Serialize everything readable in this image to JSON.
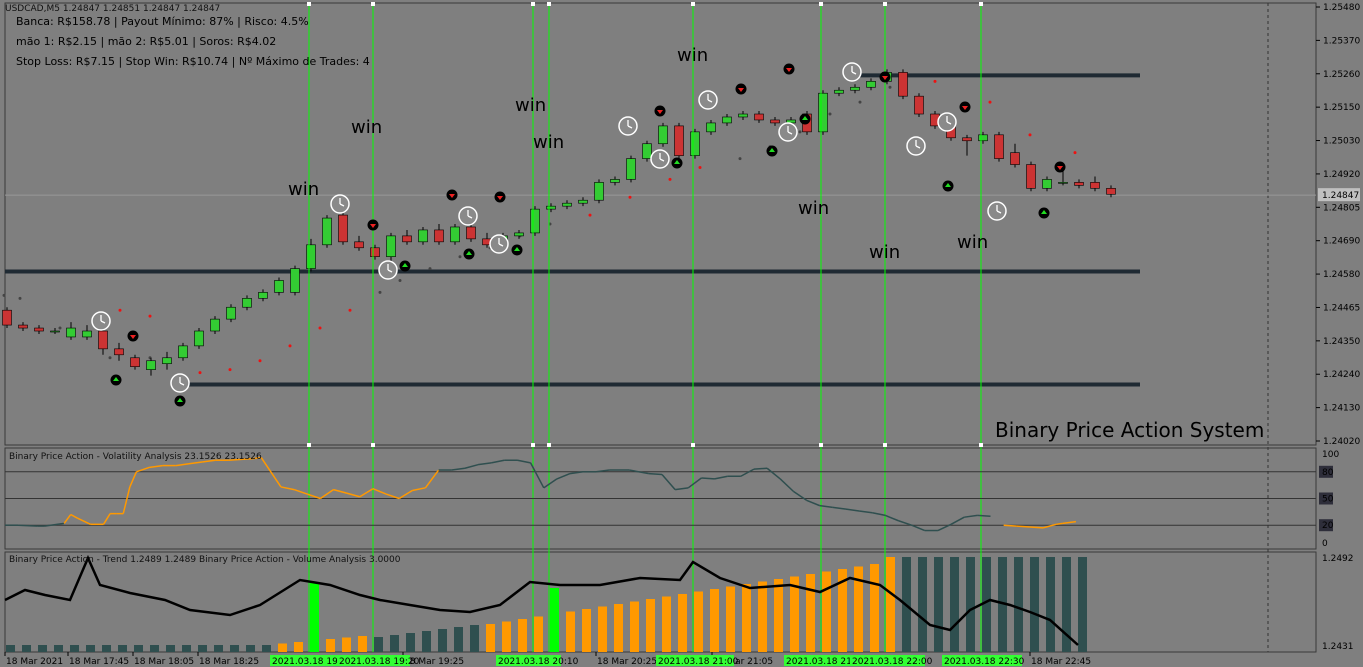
{
  "header": {
    "symbol": "USDCAD,M5  1.24847 1.24851 1.24847 1.24847",
    "line1": "Banca: R$158.78 | Payout Mínimo: 87% | Risco: 4.5%",
    "line2": "mão 1: R$2.15 | mão 2: R$5.01 | Soros: R$4.02",
    "line3": "Stop Loss: R$7.15 | Stop Win: R$10.74 | Nº Máximo de Trades: 4"
  },
  "brand": "Binary Price Action System",
  "volatility": {
    "title": "Binary Price Action - Volatility Analysis 23.1526 23.1526",
    "levels": [
      "100",
      "80",
      "50",
      "20",
      "0"
    ]
  },
  "volume": {
    "title": "Binary Price Action - Trend 1.2489 1.2489  Binary Price Action - Volume Analysis 3.0000",
    "ticks": [
      "1.2492",
      "1.2431"
    ]
  },
  "colors": {
    "bull": "#33cc33",
    "bear": "#cc3333",
    "signal_line": "#00ff00",
    "vol_orange": "#ff9900",
    "vol_dark": "#2f4f4f"
  },
  "chart_data": {
    "type": "candlestick",
    "price_axis": [
      "1.25480",
      "1.25370",
      "1.25260",
      "1.25150",
      "1.25030",
      "1.24920",
      "1.24805",
      "1.24690",
      "1.24580",
      "1.24465",
      "1.24350",
      "1.24240",
      "1.24130",
      "1.24020"
    ],
    "current_price": "1.24847",
    "time_labels": [
      "18 Mar 2021",
      "18 Mar 17:45",
      "18 Mar 18:05",
      "18 Mar 18:25",
      "18 Mar 19:25",
      "18 Mar 20:25",
      "18 Mar 21:05",
      "18 Mar 22:45"
    ],
    "signal_time_labels": [
      "2021.03.18 19:",
      "2021.03.18 19:20",
      "2021.03.18 20:10",
      "2021.03.18 21:00",
      "2021.03.18 21:",
      "2021.03.18 22:00",
      "2021.03.18 22:30"
    ],
    "win_label": "win",
    "levels": [
      1.2525,
      1.2459,
      1.2421
    ],
    "candles": [
      [
        1.2446,
        1.2447,
        1.244,
        1.2441
      ],
      [
        1.2441,
        1.2442,
        1.2439,
        1.244
      ],
      [
        1.244,
        1.2441,
        1.2438,
        1.2439
      ],
      [
        1.2439,
        1.244,
        1.2438,
        1.2439
      ],
      [
        1.2437,
        1.2442,
        1.2436,
        1.244
      ],
      [
        1.2437,
        1.2441,
        1.2436,
        1.2439
      ],
      [
        1.2439,
        1.2441,
        1.2431,
        1.2433
      ],
      [
        1.2433,
        1.2435,
        1.2429,
        1.2431
      ],
      [
        1.243,
        1.2431,
        1.2426,
        1.2427
      ],
      [
        1.2426,
        1.243,
        1.2424,
        1.2429
      ],
      [
        1.2428,
        1.2432,
        1.2426,
        1.243
      ],
      [
        1.243,
        1.2435,
        1.2429,
        1.2434
      ],
      [
        1.2434,
        1.244,
        1.2433,
        1.2439
      ],
      [
        1.2439,
        1.2444,
        1.2438,
        1.2443
      ],
      [
        1.2443,
        1.2448,
        1.2442,
        1.2447
      ],
      [
        1.2447,
        1.2451,
        1.2446,
        1.245
      ],
      [
        1.245,
        1.2453,
        1.2449,
        1.2452
      ],
      [
        1.2452,
        1.2457,
        1.2451,
        1.2456
      ],
      [
        1.2452,
        1.2461,
        1.2451,
        1.246
      ],
      [
        1.246,
        1.247,
        1.2459,
        1.2468
      ],
      [
        1.2468,
        1.2478,
        1.2467,
        1.2477
      ],
      [
        1.2478,
        1.2479,
        1.2468,
        1.2469
      ],
      [
        1.2469,
        1.2471,
        1.2466,
        1.2467
      ],
      [
        1.2467,
        1.2468,
        1.2463,
        1.2464
      ],
      [
        1.2464,
        1.2472,
        1.2462,
        1.2471
      ],
      [
        1.2471,
        1.2473,
        1.2468,
        1.2469
      ],
      [
        1.2469,
        1.2474,
        1.2468,
        1.2473
      ],
      [
        1.2473,
        1.2475,
        1.2468,
        1.2469
      ],
      [
        1.2469,
        1.2475,
        1.2468,
        1.2474
      ],
      [
        1.2474,
        1.2475,
        1.2469,
        1.247
      ],
      [
        1.247,
        1.2472,
        1.2467,
        1.2468
      ],
      [
        1.2468,
        1.2472,
        1.2467,
        1.2471
      ],
      [
        1.2471,
        1.2473,
        1.247,
        1.2472
      ],
      [
        1.2472,
        1.2481,
        1.2471,
        1.248
      ],
      [
        1.248,
        1.2482,
        1.2479,
        1.2481
      ],
      [
        1.2481,
        1.2483,
        1.248,
        1.2482
      ],
      [
        1.2482,
        1.2484,
        1.2481,
        1.2483
      ],
      [
        1.2483,
        1.249,
        1.2482,
        1.2489
      ],
      [
        1.2489,
        1.2491,
        1.2488,
        1.249
      ],
      [
        1.249,
        1.2498,
        1.2489,
        1.2497
      ],
      [
        1.2497,
        1.2503,
        1.2496,
        1.2502
      ],
      [
        1.2502,
        1.2509,
        1.2501,
        1.2508
      ],
      [
        1.2508,
        1.2509,
        1.2496,
        1.2498
      ],
      [
        1.2498,
        1.2507,
        1.2497,
        1.2506
      ],
      [
        1.2506,
        1.251,
        1.2505,
        1.2509
      ],
      [
        1.2509,
        1.2512,
        1.2508,
        1.2511
      ],
      [
        1.2511,
        1.2513,
        1.251,
        1.2512
      ],
      [
        1.2512,
        1.2513,
        1.2509,
        1.251
      ],
      [
        1.251,
        1.2511,
        1.2508,
        1.2509
      ],
      [
        1.2509,
        1.2511,
        1.2508,
        1.251
      ],
      [
        1.2512,
        1.2513,
        1.2505,
        1.2506
      ],
      [
        1.2506,
        1.252,
        1.2505,
        1.2519
      ],
      [
        1.2519,
        1.2521,
        1.2518,
        1.252
      ],
      [
        1.252,
        1.2522,
        1.2519,
        1.2521
      ],
      [
        1.2521,
        1.2524,
        1.252,
        1.2523
      ],
      [
        1.2523,
        1.2527,
        1.2522,
        1.2526
      ],
      [
        1.2526,
        1.2527,
        1.2517,
        1.2518
      ],
      [
        1.2518,
        1.2519,
        1.2511,
        1.2512
      ],
      [
        1.2512,
        1.2513,
        1.2507,
        1.2508
      ],
      [
        1.2508,
        1.2509,
        1.2503,
        1.2504
      ],
      [
        1.2504,
        1.2505,
        1.2498,
        1.2503
      ],
      [
        1.2503,
        1.2506,
        1.2502,
        1.2505
      ],
      [
        1.2505,
        1.2506,
        1.2496,
        1.2497
      ],
      [
        1.2499,
        1.2502,
        1.2494,
        1.2495
      ],
      [
        1.2495,
        1.2496,
        1.2486,
        1.2487
      ],
      [
        1.2487,
        1.2491,
        1.2486,
        1.249
      ],
      [
        1.2489,
        1.2494,
        1.2488,
        1.2489
      ],
      [
        1.2489,
        1.249,
        1.2487,
        1.2488
      ],
      [
        1.2489,
        1.2491,
        1.2486,
        1.2487
      ],
      [
        1.2487,
        1.2488,
        1.2484,
        1.2485
      ]
    ],
    "volatility_series": [
      [
        0,
        20
      ],
      [
        2,
        20
      ],
      [
        5,
        19
      ],
      [
        6,
        19
      ],
      [
        9,
        22
      ],
      [
        10,
        32
      ],
      [
        11,
        28
      ],
      [
        13,
        21
      ],
      [
        14,
        21
      ],
      [
        15,
        21
      ],
      [
        16,
        33
      ],
      [
        17,
        33
      ],
      [
        18,
        33
      ],
      [
        19,
        63
      ],
      [
        20,
        80
      ],
      [
        22,
        85
      ],
      [
        24,
        87
      ],
      [
        26,
        87
      ],
      [
        28,
        89
      ],
      [
        30,
        91
      ],
      [
        32,
        93
      ],
      [
        34,
        93
      ],
      [
        36,
        94
      ],
      [
        38,
        95
      ],
      [
        39,
        96
      ],
      [
        42,
        63
      ],
      [
        44,
        60
      ],
      [
        46,
        55
      ],
      [
        48,
        50
      ],
      [
        50,
        60
      ],
      [
        52,
        56
      ],
      [
        54,
        52
      ],
      [
        56,
        61
      ],
      [
        58,
        55
      ],
      [
        60,
        50
      ],
      [
        62,
        59
      ],
      [
        64,
        62
      ],
      [
        66,
        82
      ],
      [
        68,
        82
      ],
      [
        70,
        84
      ],
      [
        72,
        88
      ],
      [
        74,
        90
      ],
      [
        76,
        93
      ],
      [
        78,
        93
      ],
      [
        80,
        90
      ],
      [
        82,
        62
      ],
      [
        84,
        72
      ],
      [
        86,
        78
      ],
      [
        88,
        80
      ],
      [
        90,
        80
      ],
      [
        92,
        82
      ],
      [
        95,
        82
      ],
      [
        98,
        78
      ],
      [
        100,
        77
      ],
      [
        102,
        60
      ],
      [
        104,
        62
      ],
      [
        106,
        73
      ],
      [
        108,
        72
      ],
      [
        110,
        75
      ],
      [
        112,
        75
      ],
      [
        114,
        83
      ],
      [
        116,
        84
      ],
      [
        118,
        72
      ],
      [
        120,
        58
      ],
      [
        122,
        48
      ],
      [
        124,
        42
      ],
      [
        126,
        40
      ],
      [
        128,
        38
      ],
      [
        130,
        36
      ],
      [
        132,
        34
      ],
      [
        134,
        31
      ],
      [
        136,
        25
      ],
      [
        138,
        20
      ],
      [
        140,
        14
      ],
      [
        142,
        14
      ],
      [
        144,
        21
      ],
      [
        146,
        29
      ],
      [
        148,
        31
      ],
      [
        150,
        30
      ],
      [
        152,
        20
      ],
      [
        154,
        19
      ],
      [
        156,
        18
      ],
      [
        158,
        17
      ],
      [
        160,
        21
      ],
      [
        161,
        22
      ],
      [
        163,
        24
      ]
    ]
  }
}
